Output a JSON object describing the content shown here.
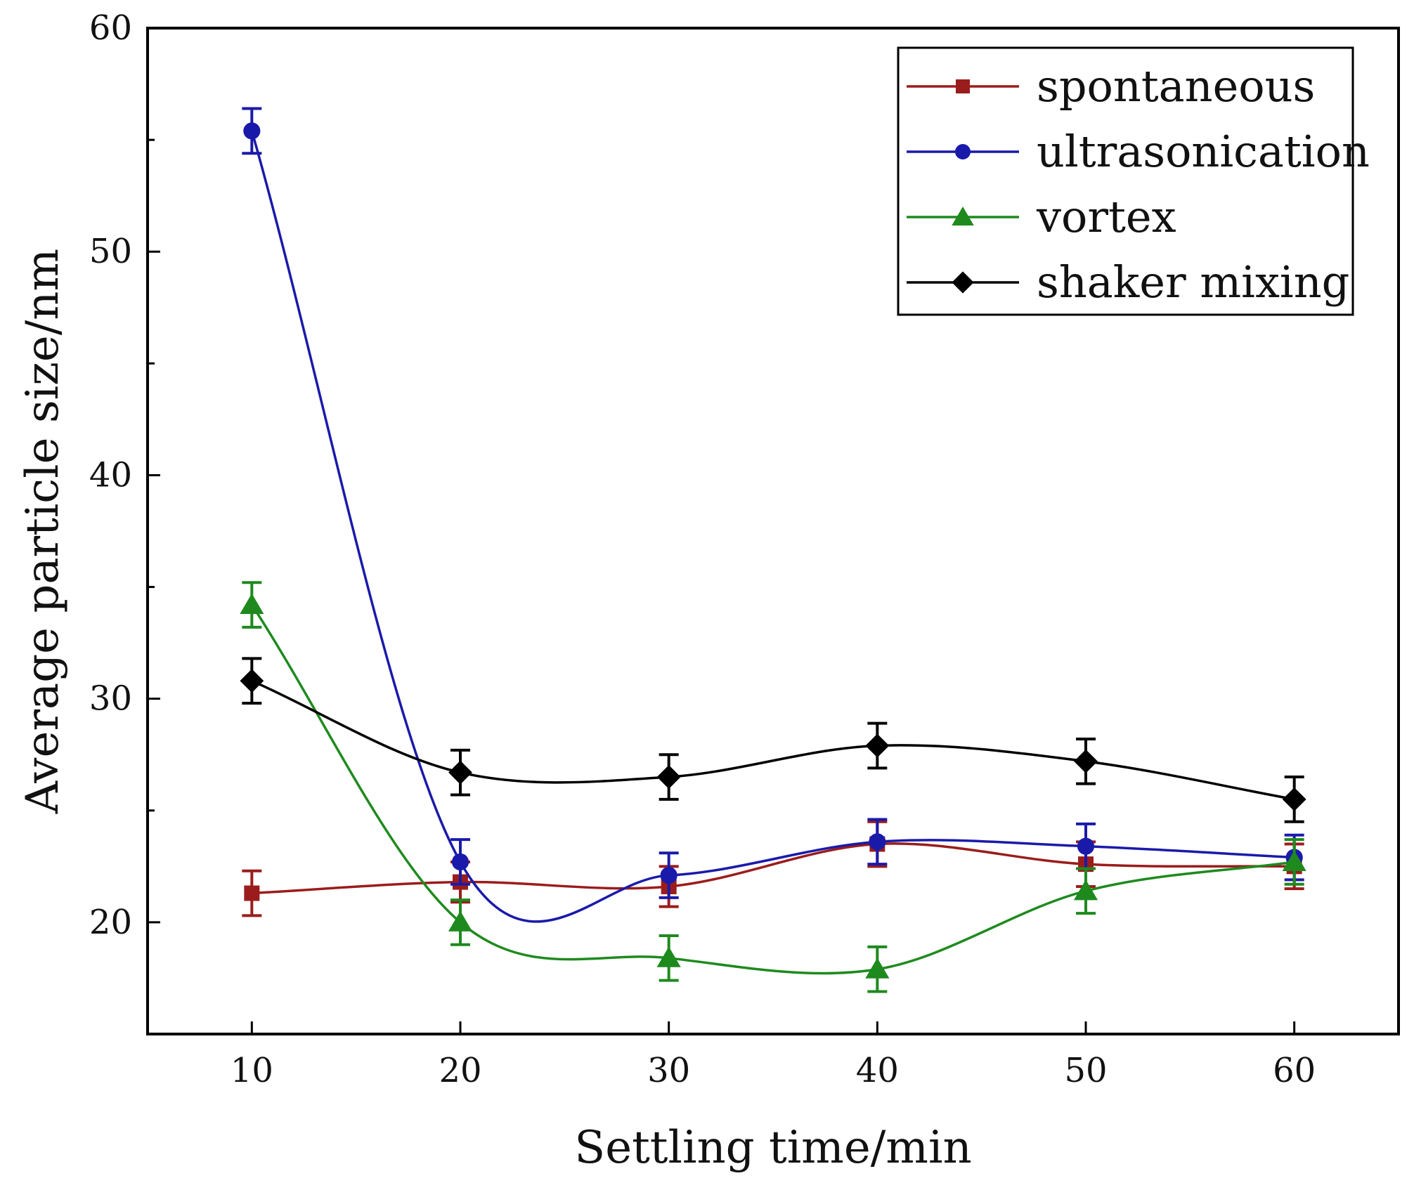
{
  "chart_data": {
    "type": "line",
    "title": "",
    "xlabel": "Settling time/min",
    "ylabel": "Average particle size/nm",
    "x": [
      10,
      20,
      30,
      40,
      50,
      60
    ],
    "xlim": [
      5,
      65
    ],
    "ylim": [
      15,
      60
    ],
    "xticks": [
      10,
      20,
      30,
      40,
      50,
      60
    ],
    "yticks": [
      20,
      30,
      40,
      50,
      60
    ],
    "grid": false,
    "legend_position": "top-right",
    "series": [
      {
        "name": "spontaneous",
        "color": "#9b1c1c",
        "marker": "square",
        "values": [
          21.3,
          21.8,
          21.6,
          23.5,
          22.6,
          22.5
        ],
        "errors": [
          1.0,
          0.9,
          0.9,
          1.0,
          1.0,
          1.0
        ]
      },
      {
        "name": "ultrasonication",
        "color": "#1a1aaa",
        "marker": "circle",
        "values": [
          55.4,
          22.7,
          22.1,
          23.6,
          23.4,
          22.9
        ],
        "errors": [
          1.0,
          1.0,
          1.0,
          1.0,
          1.0,
          1.0
        ]
      },
      {
        "name": "vortex",
        "color": "#1e8a1e",
        "marker": "triangle",
        "values": [
          34.2,
          20.0,
          18.4,
          17.9,
          21.4,
          22.7
        ],
        "errors": [
          1.0,
          1.0,
          1.0,
          1.0,
          1.0,
          1.0
        ]
      },
      {
        "name": "shaker mixing",
        "color": "#000000",
        "marker": "diamond",
        "values": [
          30.8,
          26.7,
          26.5,
          27.9,
          27.2,
          25.5
        ],
        "errors": [
          1.0,
          1.0,
          1.0,
          1.0,
          1.0,
          1.0
        ]
      }
    ]
  }
}
